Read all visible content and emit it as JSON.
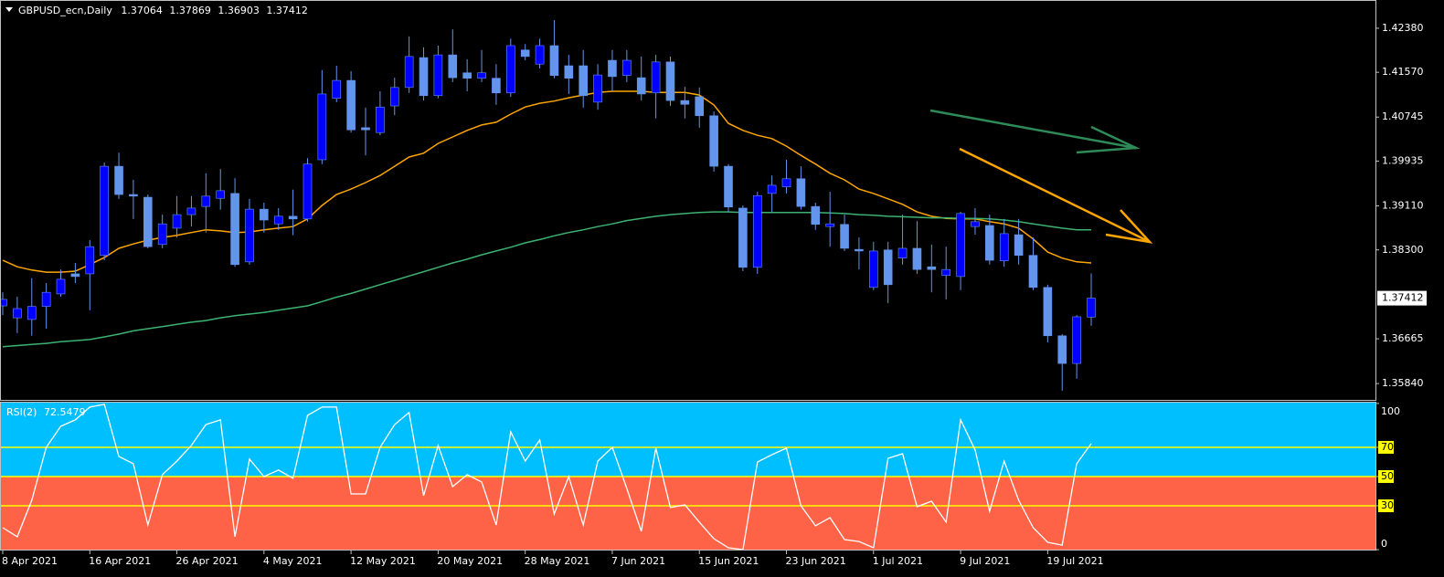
{
  "chart_data": {
    "type": "candlestick",
    "title": "GBPUSD_ecn,Daily",
    "categories": [
      "8 Apr 2021",
      null,
      null,
      null,
      null,
      null,
      "16 Apr 2021",
      null,
      null,
      null,
      null,
      null,
      "26 Apr 2021",
      null,
      null,
      null,
      null,
      null,
      "4 May 2021",
      null,
      null,
      null,
      null,
      null,
      "12 May 2021",
      null,
      null,
      null,
      null,
      null,
      "20 May 2021",
      null,
      null,
      null,
      null,
      null,
      "28 May 2021",
      null,
      null,
      null,
      null,
      null,
      "7 Jun 2021",
      null,
      null,
      null,
      null,
      null,
      "15 Jun 2021",
      null,
      null,
      null,
      null,
      null,
      "23 Jun 2021",
      null,
      null,
      null,
      null,
      null,
      "1 Jul 2021",
      null,
      null,
      null,
      null,
      null,
      "9 Jul 2021",
      null,
      null,
      null,
      null,
      null,
      "19 Jul 2021",
      null,
      null,
      null
    ],
    "open": [
      1.3727,
      1.3705,
      1.3702,
      1.3726,
      1.3749,
      1.3786,
      1.3786,
      1.382,
      1.3984,
      1.3932,
      1.3927,
      1.384,
      1.387,
      1.3895,
      1.391,
      1.3925,
      1.3934,
      1.3808,
      1.3905,
      1.3878,
      1.3892,
      1.3887,
      1.3996,
      1.4109,
      1.4142,
      1.4055,
      1.4046,
      1.4095,
      1.4129,
      1.4184,
      1.4114,
      1.4189,
      1.4156,
      1.4146,
      1.4146,
      1.4119,
      1.4198,
      1.4172,
      1.4206,
      1.4169,
      1.4169,
      1.4102,
      1.4179,
      1.4151,
      1.4147,
      1.4119,
      1.4176,
      1.4105,
      1.4112,
      1.4077,
      1.3984,
      1.3907,
      1.3798,
      1.3934,
      1.3946,
      1.3961,
      1.391,
      1.3873,
      1.3877,
      1.3831,
      1.3761,
      1.383,
      1.3815,
      1.3833,
      1.3799,
      1.3783,
      1.3781,
      1.3873,
      1.3875,
      1.381,
      1.3858,
      1.382,
      1.3761,
      1.3672,
      1.3621,
      1.37064
    ],
    "high": [
      1.3752,
      1.3744,
      1.3778,
      1.3769,
      1.3794,
      1.3806,
      1.3848,
      1.3991,
      1.4009,
      1.3959,
      1.3932,
      1.3895,
      1.3929,
      1.3929,
      1.3971,
      1.3979,
      1.3962,
      1.3924,
      1.3917,
      1.3907,
      1.3941,
      1.3999,
      1.4161,
      1.4169,
      1.4159,
      1.4092,
      1.4122,
      1.4147,
      1.4223,
      1.4203,
      1.4206,
      1.4236,
      1.4181,
      1.4198,
      1.4172,
      1.4219,
      1.4209,
      1.4219,
      1.4253,
      1.4189,
      1.4198,
      1.4172,
      1.4198,
      1.4198,
      1.4186,
      1.4189,
      1.4186,
      1.413,
      1.4129,
      1.4085,
      1.3988,
      1.3912,
      1.3937,
      1.3967,
      1.3996,
      1.3984,
      1.3917,
      1.3937,
      1.3895,
      1.3853,
      1.3845,
      1.3845,
      1.3895,
      1.3883,
      1.384,
      1.3836,
      1.39,
      1.3907,
      1.3895,
      1.3887,
      1.3887,
      1.3853,
      1.3766,
      1.3675,
      1.371,
      1.37869
    ],
    "low": [
      1.371,
      1.3677,
      1.3672,
      1.3685,
      1.3744,
      1.3769,
      1.3719,
      1.3811,
      1.3924,
      1.3887,
      1.3833,
      1.3833,
      1.3853,
      1.3873,
      1.3862,
      1.3904,
      1.3799,
      1.3803,
      1.3862,
      1.3867,
      1.3857,
      1.3882,
      1.3988,
      1.4102,
      1.4046,
      1.4004,
      1.4041,
      1.4078,
      1.4119,
      1.4105,
      1.4109,
      1.4139,
      1.4122,
      1.4139,
      1.4097,
      1.4112,
      1.4179,
      1.4164,
      1.4146,
      1.4117,
      1.4092,
      1.4088,
      1.4122,
      1.4139,
      1.4105,
      1.4072,
      1.4095,
      1.4072,
      1.4055,
      1.3974,
      1.39,
      1.3791,
      1.3786,
      1.39,
      1.3934,
      1.3904,
      1.3867,
      1.3836,
      1.3828,
      1.3794,
      1.3756,
      1.3732,
      1.3803,
      1.3786,
      1.3752,
      1.3739,
      1.3756,
      1.3858,
      1.3803,
      1.3799,
      1.3803,
      1.3756,
      1.366,
      1.3571,
      1.3593,
      1.36903
    ],
    "close": [
      1.3739,
      1.3722,
      1.3726,
      1.3752,
      1.3776,
      1.3781,
      1.3836,
      1.3984,
      1.3932,
      1.3929,
      1.3836,
      1.3878,
      1.3895,
      1.3907,
      1.3929,
      1.3939,
      1.3803,
      1.3905,
      1.3885,
      1.3892,
      1.3887,
      1.3988,
      1.4117,
      1.4142,
      1.4051,
      1.4051,
      1.4093,
      1.4129,
      1.4186,
      1.4114,
      1.4189,
      1.4147,
      1.4146,
      1.4156,
      1.4119,
      1.4206,
      1.4186,
      1.4206,
      1.4151,
      1.4146,
      1.4114,
      1.4152,
      1.4149,
      1.4179,
      1.4117,
      1.4176,
      1.4105,
      1.4098,
      1.4077,
      1.3984,
      1.3909,
      1.3798,
      1.393,
      1.3949,
      1.3961,
      1.391,
      1.3877,
      1.3878,
      1.3833,
      1.3828,
      1.3828,
      1.3766,
      1.3833,
      1.3794,
      1.3794,
      1.3794,
      1.3897,
      1.3882,
      1.3811,
      1.386,
      1.382,
      1.3761,
      1.3672,
      1.3621,
      1.3707,
      1.37412
    ],
    "up_color": "#0000ff",
    "down_color": "#6495ed",
    "ylim": [
      1.3554,
      1.429
    ],
    "yticks": [
      {
        "value": 1.4238,
        "label": "1.42380"
      },
      {
        "value": 1.4157,
        "label": "1.41570"
      },
      1.40745,
      1.39935,
      {
        "value": 1.3911,
        "label": "1.39110"
      },
      {
        "value": 1.383,
        "label": "1.38300"
      },
      1.36665,
      {
        "value": 1.3584,
        "label": "1.35840"
      }
    ],
    "series": [
      {
        "color": "#ffa500",
        "values": [
          1.3811,
          1.3799,
          1.3793,
          1.3789,
          1.3789,
          1.3791,
          1.3803,
          1.3816,
          1.3833,
          1.3841,
          1.3848,
          1.3853,
          1.3857,
          1.3862,
          1.3867,
          1.3865,
          1.3862,
          1.3863,
          1.3867,
          1.387,
          1.3873,
          1.3887,
          1.3912,
          1.3932,
          1.3942,
          1.3954,
          1.3967,
          1.3984,
          1.4001,
          1.4008,
          1.4026,
          1.4038,
          1.405,
          1.406,
          1.4065,
          1.408,
          1.4093,
          1.41,
          1.4104,
          1.411,
          1.4115,
          1.412,
          1.4122,
          1.4122,
          1.4122,
          1.412,
          1.412,
          1.412,
          1.4115,
          1.4097,
          1.4063,
          1.405,
          1.4041,
          1.4035,
          1.4021,
          1.4004,
          1.3988,
          1.3971,
          1.3959,
          1.3942,
          1.3934,
          1.3924,
          1.3914,
          1.39,
          1.3892,
          1.3888,
          1.3887,
          1.3887,
          1.3882,
          1.3878,
          1.387,
          1.385,
          1.3826,
          1.3815,
          1.3808,
          1.3806
        ]
      },
      {
        "color": "#3cb371",
        "values": [
          1.3652,
          1.3654,
          1.3656,
          1.3658,
          1.3661,
          1.3663,
          1.3665,
          1.367,
          1.3675,
          1.3681,
          1.3685,
          1.3689,
          1.3693,
          1.3697,
          1.37,
          1.3705,
          1.3709,
          1.3712,
          1.3715,
          1.3719,
          1.3723,
          1.3727,
          1.3735,
          1.3743,
          1.375,
          1.3758,
          1.3766,
          1.3774,
          1.3782,
          1.379,
          1.3798,
          1.3806,
          1.3813,
          1.3821,
          1.3828,
          1.3835,
          1.3843,
          1.3849,
          1.3856,
          1.3862,
          1.3867,
          1.3873,
          1.3878,
          1.3884,
          1.3888,
          1.3892,
          1.3895,
          1.3897,
          1.3899,
          1.39,
          1.39,
          1.3899,
          1.3899,
          1.3899,
          1.3899,
          1.3899,
          1.3899,
          1.3898,
          1.3897,
          1.3895,
          1.3894,
          1.3892,
          1.3891,
          1.389,
          1.3889,
          1.3889,
          1.3888,
          1.3888,
          1.3887,
          1.3885,
          1.3882,
          1.3878,
          1.3874,
          1.387,
          1.3867,
          1.3867
        ]
      }
    ],
    "rsi": {
      "label": "RSI(2)",
      "color": "#ffffff",
      "values": [
        15.0,
        8.8,
        33.8,
        70.0,
        84.4,
        88.8,
        97.5,
        99.4,
        63.8,
        58.8,
        16.9,
        51.3,
        60.6,
        71.3,
        85.6,
        88.8,
        8.8,
        61.9,
        50.0,
        54.4,
        48.8,
        91.9,
        97.5,
        97.5,
        38.1,
        38.1,
        70.0,
        85.6,
        93.8,
        36.9,
        71.3,
        43.1,
        51.3,
        46.3,
        16.9,
        80.6,
        60.6,
        75.0,
        24.4,
        50.0,
        16.9,
        60.6,
        70.0,
        41.9,
        12.5,
        69.4,
        28.8,
        30.6,
        18.8,
        7.5,
        1.3,
        0.0,
        60.0,
        65.0,
        69.4,
        30.0,
        16.3,
        21.9,
        6.9,
        5.6,
        1.3,
        62.5,
        65.6,
        29.4,
        33.1,
        18.8,
        88.8,
        68.1,
        26.3,
        60.6,
        33.8,
        15.0,
        5.0,
        3.1,
        58.8,
        72.5479
      ],
      "ylim": [
        -0.6,
        101.2
      ],
      "yticks": [
        0,
        30,
        50,
        70,
        100
      ],
      "levels": [
        30,
        50,
        70
      ],
      "level_color": "#ffff00",
      "split": 50,
      "upper_color": "#00bfff",
      "lower_color": "#ff6347"
    }
  }
}
